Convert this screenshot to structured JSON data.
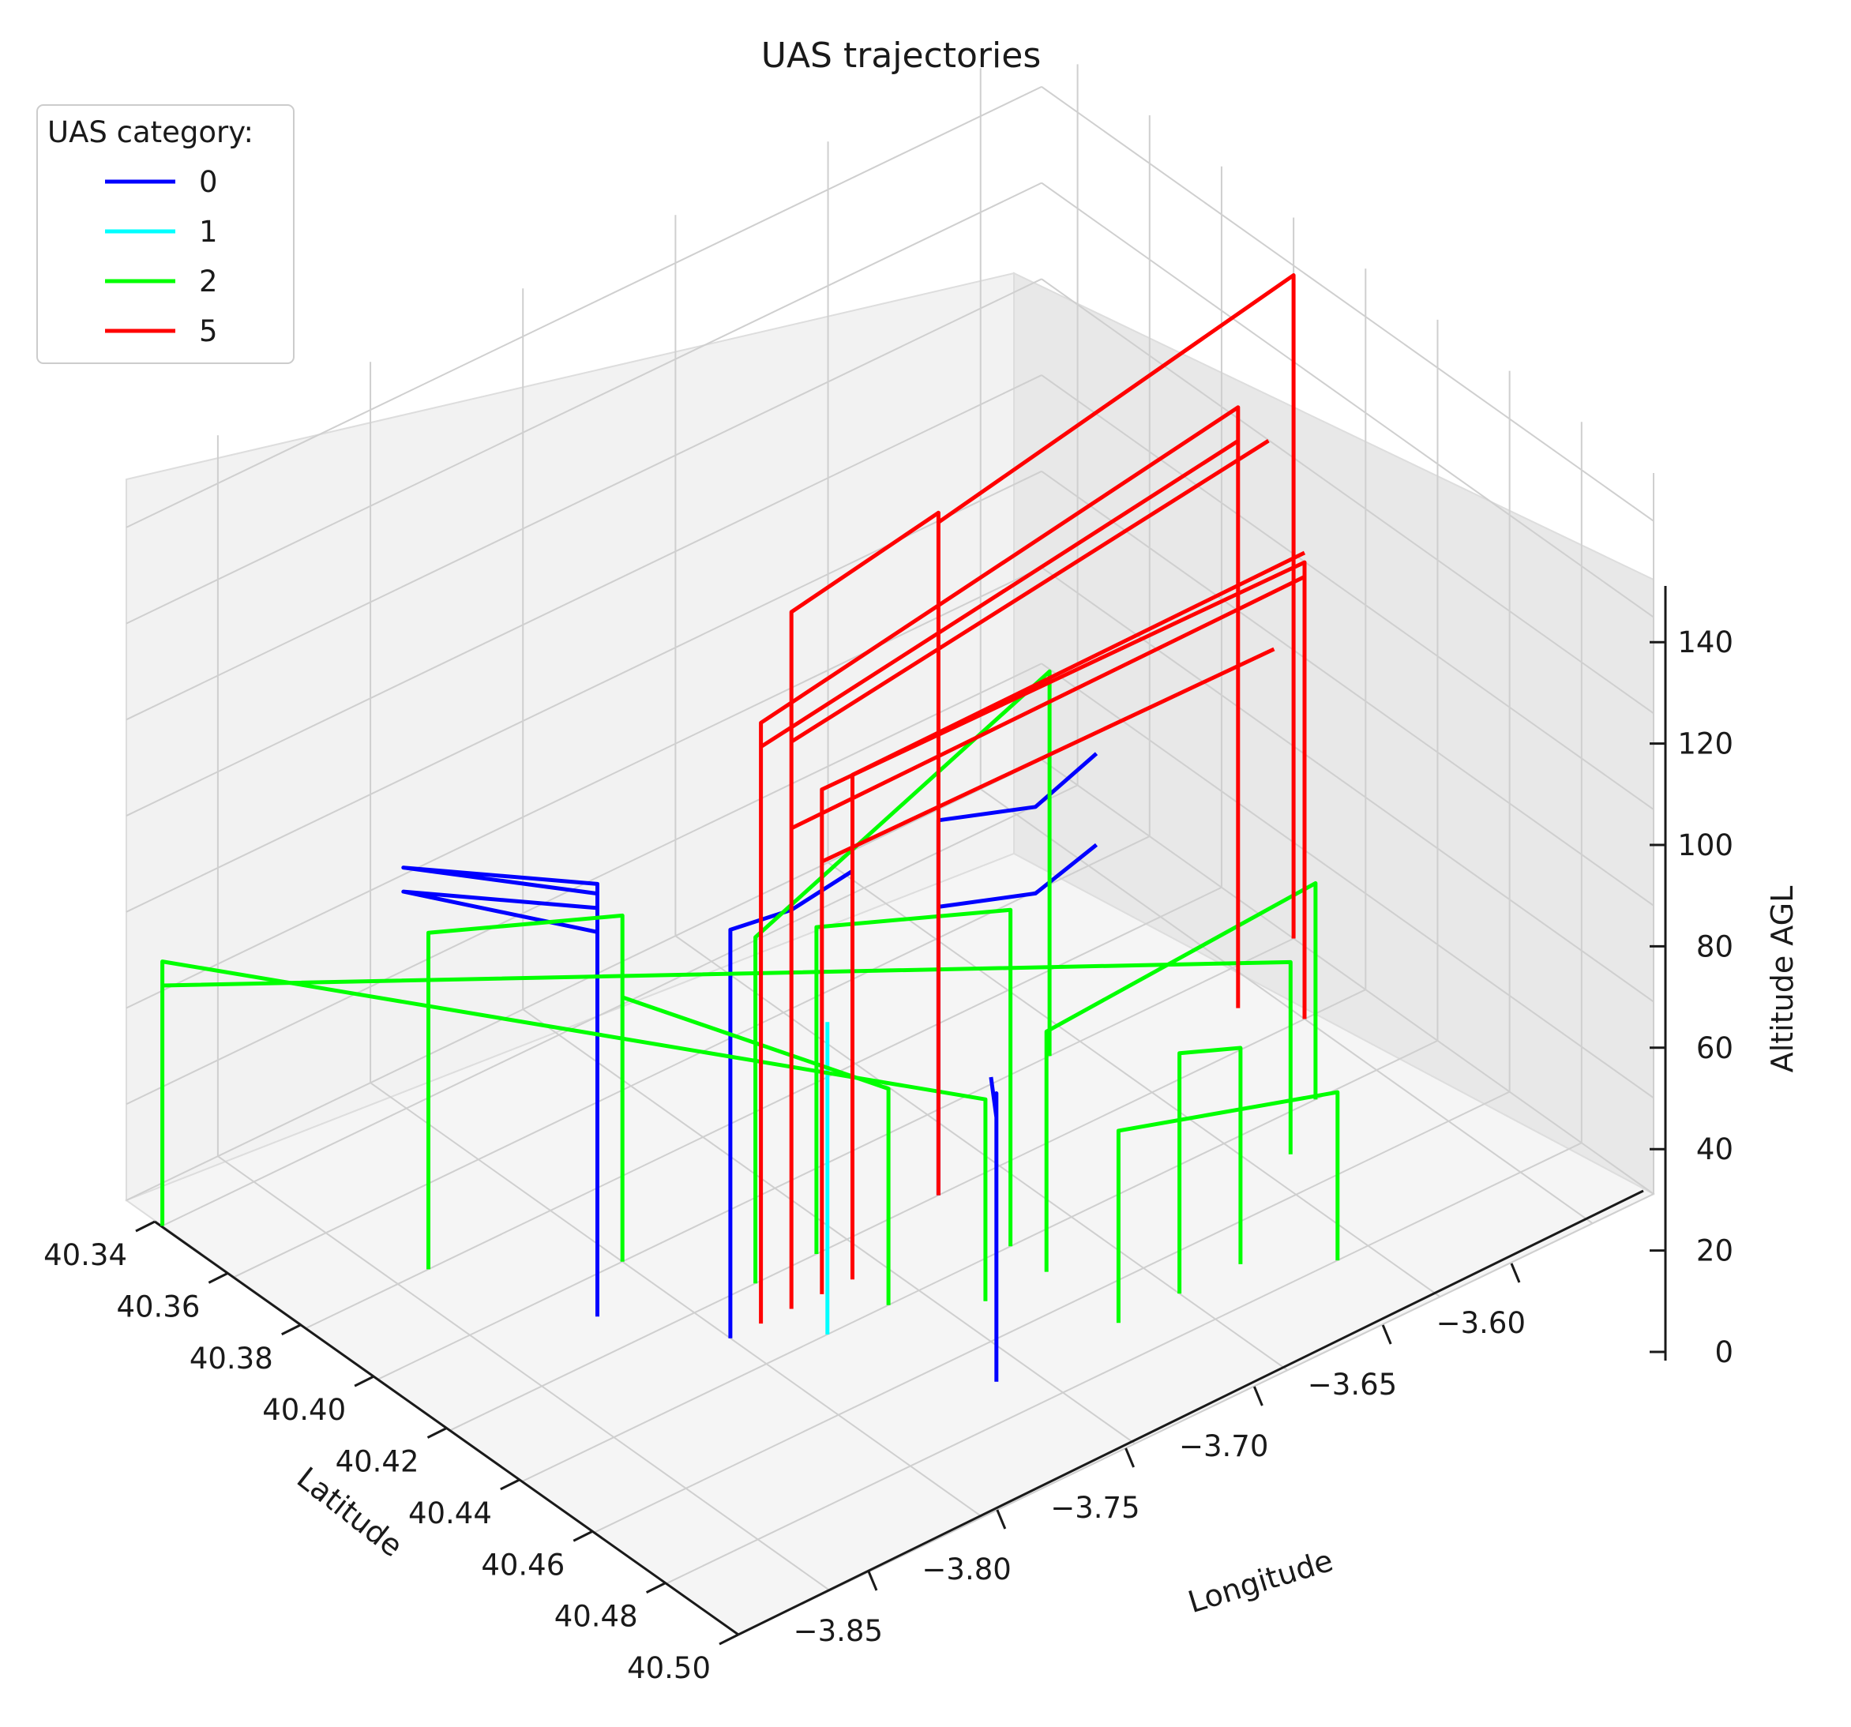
{
  "chart_data": {
    "type": "line",
    "title": "UAS trajectories",
    "xlabel": "Latitude",
    "ylabel": "Longitude",
    "zlabel": "Altitude AGL",
    "x_ticks": [
      "40.34",
      "40.36",
      "40.38",
      "40.40",
      "40.42",
      "40.44",
      "40.46",
      "40.48",
      "40.50"
    ],
    "y_ticks": [
      "−3.85",
      "−3.80",
      "−3.75",
      "−3.70",
      "−3.65",
      "−3.60"
    ],
    "z_ticks": [
      "0",
      "20",
      "40",
      "60",
      "80",
      "100",
      "120",
      "140"
    ],
    "xlim": [
      40.33,
      40.5
    ],
    "ylim": [
      -3.88,
      -3.58
    ],
    "zlim": [
      0,
      150
    ],
    "grid": true,
    "legend": {
      "title": "UAS category:",
      "placement": "upper-left",
      "entries": [
        {
          "label": "0",
          "color": "#0000ff"
        },
        {
          "label": "1",
          "color": "#00ffff"
        },
        {
          "label": "2",
          "color": "#00ff00"
        },
        {
          "label": "5",
          "color": "#ff0000"
        }
      ]
    },
    "series": [
      {
        "name": "0",
        "color": "#0000ff",
        "trajectories": [
          [
            [
              40.41,
              -3.82,
              0
            ],
            [
              40.41,
              -3.82,
              90
            ],
            [
              40.39,
              -3.86,
              95
            ],
            [
              40.41,
              -3.82,
              88
            ]
          ],
          [
            [
              40.41,
              -3.82,
              85
            ],
            [
              40.39,
              -3.86,
              90
            ],
            [
              40.41,
              -3.82,
              80
            ]
          ],
          [
            [
              40.43,
              -3.8,
              0
            ],
            [
              40.43,
              -3.8,
              85
            ],
            [
              40.43,
              -3.78,
              83
            ],
            [
              40.43,
              -3.76,
              85
            ]
          ],
          [
            [
              40.42,
              -3.72,
              0
            ],
            [
              40.42,
              -3.72,
              78
            ],
            [
              40.43,
              -3.7,
              80
            ],
            [
              40.43,
              -3.68,
              85
            ]
          ],
          [
            [
              40.42,
              -3.72,
              60
            ],
            [
              40.43,
              -3.7,
              62
            ],
            [
              40.43,
              -3.68,
              66
            ]
          ],
          [
            [
              40.47,
              -3.76,
              0
            ],
            [
              40.47,
              -3.76,
              60
            ],
            [
              40.47,
              -3.76,
              55
            ],
            [
              40.46,
              -3.75,
              55
            ]
          ]
        ]
      },
      {
        "name": "1",
        "color": "#00ffff",
        "trajectories": [
          [
            [
              40.44,
              -3.78,
              0
            ],
            [
              40.44,
              -3.78,
              65
            ]
          ]
        ]
      },
      {
        "name": "2",
        "color": "#00ff00",
        "trajectories": [
          [
            [
              40.34,
              -3.88,
              0
            ],
            [
              40.34,
              -3.88,
              55
            ],
            [
              40.45,
              -3.74,
              42
            ],
            [
              40.45,
              -3.74,
              0
            ]
          ],
          [
            [
              40.34,
              -3.88,
              50
            ],
            [
              40.45,
              -3.64,
              40
            ],
            [
              40.45,
              -3.64,
              0
            ]
          ],
          [
            [
              40.38,
              -3.84,
              0
            ],
            [
              40.38,
              -3.84,
              70
            ],
            [
              40.4,
              -3.8,
              72
            ],
            [
              40.4,
              -3.8,
              0
            ]
          ],
          [
            [
              40.4,
              -3.8,
              55
            ],
            [
              40.44,
              -3.76,
              45
            ],
            [
              40.44,
              -3.76,
              0
            ]
          ],
          [
            [
              40.42,
              -3.78,
              0
            ],
            [
              40.42,
              -3.78,
              72
            ],
            [
              40.4,
              -3.66,
              80
            ],
            [
              40.4,
              -3.66,
              0
            ]
          ],
          [
            [
              40.42,
              -3.76,
              0
            ],
            [
              40.42,
              -3.76,
              68
            ],
            [
              40.44,
              -3.72,
              70
            ],
            [
              40.44,
              -3.72,
              0
            ]
          ],
          [
            [
              40.45,
              -3.72,
              0
            ],
            [
              40.45,
              -3.72,
              50
            ],
            [
              40.44,
              -3.62,
              45
            ],
            [
              40.44,
              -3.62,
              0
            ]
          ],
          [
            [
              40.47,
              -3.7,
              0
            ],
            [
              40.47,
              -3.7,
              50
            ],
            [
              40.47,
              -3.68,
              45
            ],
            [
              40.47,
              -3.68,
              0
            ]
          ],
          [
            [
              40.47,
              -3.72,
              0
            ],
            [
              40.47,
              -3.72,
              40
            ],
            [
              40.48,
              -3.66,
              35
            ],
            [
              40.48,
              -3.66,
              0
            ]
          ]
        ]
      },
      {
        "name": "5",
        "color": "#ff0000",
        "trajectories": [
          [
            [
              40.43,
              -3.78,
              0
            ],
            [
              40.43,
              -3.78,
              145
            ],
            [
              40.42,
              -3.72,
              142
            ],
            [
              40.42,
              -3.72,
              0
            ]
          ],
          [
            [
              40.42,
              -3.72,
              140
            ],
            [
              40.4,
              -3.58,
              138
            ],
            [
              40.4,
              -3.58,
              0
            ]
          ],
          [
            [
              40.43,
              -3.79,
              0
            ],
            [
              40.43,
              -3.79,
              125
            ],
            [
              40.41,
              -3.61,
              125
            ],
            [
              40.41,
              -3.61,
              0
            ]
          ],
          [
            [
              40.43,
              -3.79,
              120
            ],
            [
              40.41,
              -3.61,
              118
            ]
          ],
          [
            [
              40.43,
              -3.78,
              118
            ],
            [
              40.41,
              -3.6,
              115
            ]
          ],
          [
            [
              40.43,
              -3.77,
              0
            ],
            [
              40.43,
              -3.77,
              105
            ],
            [
              40.42,
              -3.6,
              95
            ],
            [
              40.42,
              -3.6,
              0
            ]
          ],
          [
            [
              40.43,
              -3.76,
              0
            ],
            [
              40.43,
              -3.76,
              105
            ],
            [
              40.42,
              -3.6,
              97
            ]
          ],
          [
            [
              40.43,
              -3.78,
              100
            ],
            [
              40.42,
              -3.6,
              92
            ]
          ],
          [
            [
              40.43,
              -3.77,
              90
            ],
            [
              40.42,
              -3.61,
              80
            ]
          ]
        ]
      }
    ]
  }
}
